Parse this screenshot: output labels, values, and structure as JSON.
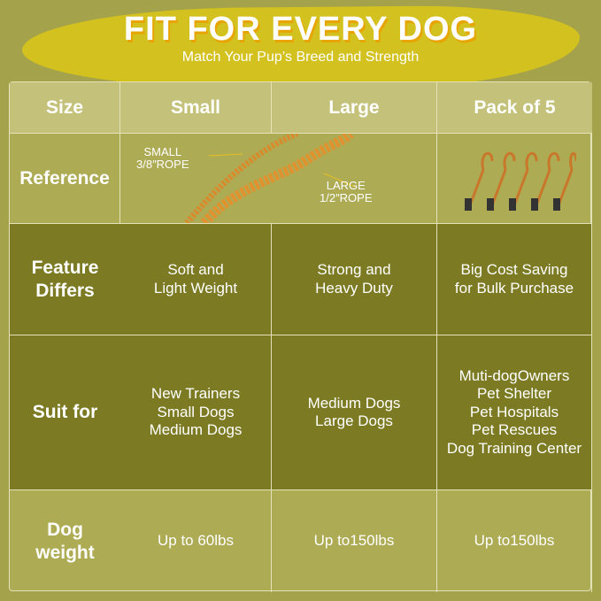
{
  "header": {
    "title": "FIT FOR EVERY DOG",
    "subtitle": "Match Your Pup’s Breed and Strength"
  },
  "colors": {
    "background": "#a4a34b",
    "brush": "#d3c11f",
    "header_row": "#c4c27a",
    "dark_band": "#7c7b24",
    "rope": "#d98a2b"
  },
  "table": {
    "columns": [
      "Size",
      "Small",
      "Large",
      "Pack of 5"
    ],
    "reference": {
      "label": "Reference",
      "small_rope": "SMALL\n3/8″ROPE",
      "large_rope": "LARGE\n1/2″ROPE"
    },
    "feature": {
      "label": "Feature\nDiffers",
      "values": [
        "Soft and\nLight Weight",
        "Strong and\nHeavy Duty",
        "Big Cost Saving\nfor Bulk Purchase"
      ]
    },
    "suit": {
      "label": "Suit for",
      "values": [
        "New Trainers\nSmall Dogs\nMedium Dogs",
        "Medium Dogs\nLarge Dogs",
        "Muti-dogOwners\nPet Shelter\nPet Hospitals\nPet Rescues\nDog Training Center"
      ]
    },
    "weight": {
      "label": "Dog\nweight",
      "values": [
        "Up to 60lbs",
        "Up to150lbs",
        "Up to150lbs"
      ]
    }
  }
}
